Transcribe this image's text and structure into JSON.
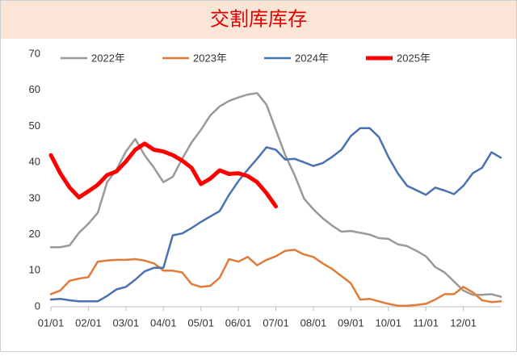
{
  "chart_data": {
    "type": "line",
    "title": "交割库库存",
    "categories": [
      "01/01",
      null,
      null,
      null,
      "02/01",
      null,
      null,
      null,
      "03/01",
      null,
      null,
      null,
      "04/01",
      null,
      null,
      null,
      "05/01",
      null,
      null,
      null,
      "06/01",
      null,
      null,
      null,
      "07/01",
      null,
      null,
      null,
      "08/01",
      null,
      null,
      null,
      "09/01",
      null,
      null,
      null,
      "10/01",
      null,
      null,
      null,
      "11/01",
      null,
      null,
      null,
      "12/01",
      null,
      null,
      null,
      null
    ],
    "ylim": [
      0,
      70
    ],
    "yticks": [
      0,
      10,
      20,
      30,
      40,
      50,
      60,
      70
    ],
    "series": [
      {
        "name": "2022年",
        "color": "#999999",
        "width": 2.5,
        "values": [
          16.5,
          16.5,
          17,
          20.5,
          23,
          26,
          34.5,
          38,
          43,
          46.5,
          42,
          38.5,
          34.5,
          36,
          41,
          45.5,
          49,
          53,
          55.5,
          57,
          58,
          58.8,
          59.2,
          56,
          49,
          42,
          36.5,
          30,
          27,
          24.5,
          22.5,
          20.8,
          21,
          20.5,
          20,
          19,
          18.8,
          17.3,
          16.8,
          15.5,
          14,
          11,
          9.5,
          7,
          4.5,
          3.3,
          3.3,
          3.5,
          2.8
        ]
      },
      {
        "name": "2023年",
        "color": "#e07b39",
        "width": 2.5,
        "values": [
          3.5,
          4.5,
          7.2,
          7.8,
          8.2,
          12.5,
          12.8,
          13,
          13,
          13.2,
          12.8,
          12,
          10,
          10,
          9.5,
          6.3,
          5.5,
          5.8,
          8,
          13.2,
          12.5,
          13.8,
          11.5,
          13,
          14,
          15.5,
          15.8,
          14.5,
          13.8,
          12,
          10.5,
          8.5,
          6.5,
          2,
          2.2,
          1.5,
          0.8,
          0.3,
          0.3,
          0.5,
          0.8,
          2,
          3.5,
          3.5,
          5.5,
          4,
          1.8,
          1.3,
          1.5
        ]
      },
      {
        "name": "2024年",
        "color": "#4a72b0",
        "width": 2.5,
        "values": [
          2,
          2.2,
          1.8,
          1.5,
          1.5,
          1.5,
          3,
          4.8,
          5.5,
          7.5,
          9.8,
          10.8,
          10.8,
          19.8,
          20.3,
          21.8,
          23.5,
          25,
          26.5,
          31,
          34.8,
          38,
          41,
          44.2,
          43.5,
          40.8,
          41,
          40,
          39,
          39.8,
          41.5,
          43.5,
          47.3,
          49.5,
          49.5,
          47,
          41.5,
          37,
          33.5,
          32.3,
          31,
          33,
          32.2,
          31.2,
          33.5,
          37,
          38.5,
          42.8,
          41.3
        ]
      },
      {
        "name": "2025年",
        "color": "#ff0000",
        "width": 5,
        "values": [
          42,
          37,
          33,
          30.3,
          32,
          33.8,
          36.5,
          37.5,
          40.2,
          43.5,
          45.2,
          43.5,
          43,
          42,
          40.5,
          38.5,
          34,
          35.5,
          37.8,
          36.8,
          37,
          36.2,
          34.5,
          31.5,
          27.8,
          null,
          null,
          null,
          null,
          null,
          null,
          null,
          null,
          null,
          null,
          null,
          null,
          null,
          null,
          null,
          null,
          null,
          null,
          null,
          null,
          null,
          null,
          null,
          null
        ]
      }
    ]
  }
}
